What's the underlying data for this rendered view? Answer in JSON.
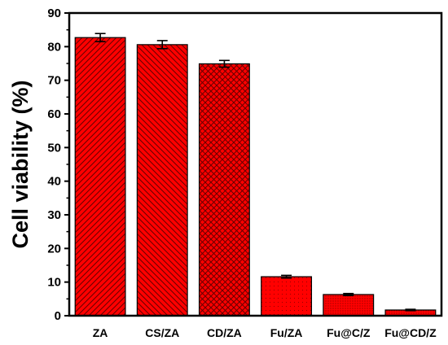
{
  "chart_data": {
    "type": "bar",
    "title": "",
    "xlabel": "",
    "ylabel": "Cell viability (%)",
    "categories": [
      "ZA",
      "CS/ZA",
      "CD/ZA",
      "Fu/ZA",
      "Fu@C/Z",
      "Fu@CD/Z"
    ],
    "values": [
      82.7,
      80.6,
      74.9,
      11.6,
      6.3,
      1.7
    ],
    "errors": [
      1.2,
      1.2,
      1.0,
      0.4,
      0.3,
      0.2
    ],
    "ylim": [
      0,
      90
    ],
    "yticks": [
      "0",
      "10",
      "20",
      "30",
      "40",
      "50",
      "60",
      "70",
      "80",
      "90"
    ],
    "grid": false,
    "legend": "none",
    "bar_fill": "#ff0000",
    "hatches": [
      "diag-right",
      "diag-left",
      "crosshatch",
      "dots",
      "dense-dots",
      "dense-dots"
    ]
  }
}
